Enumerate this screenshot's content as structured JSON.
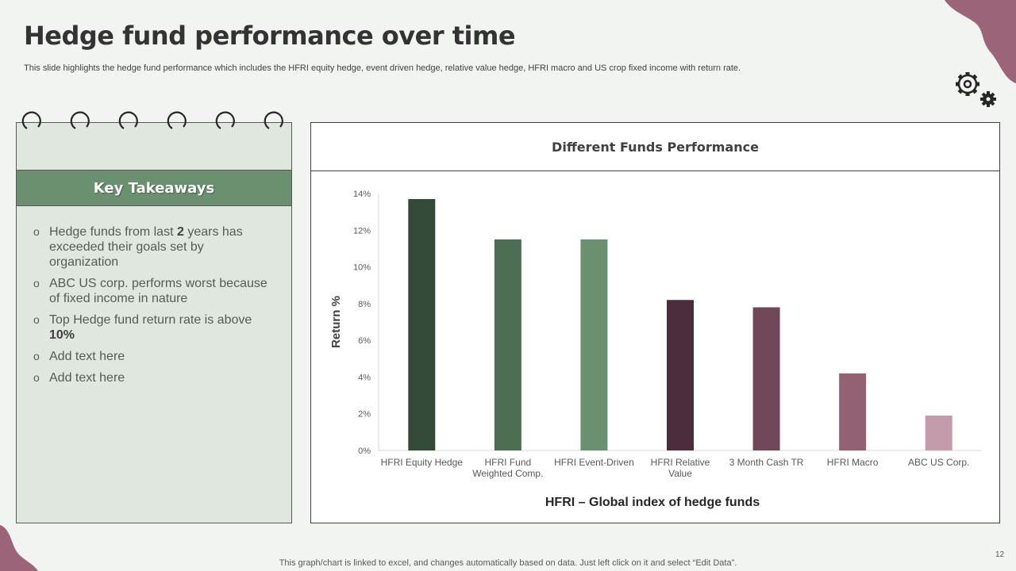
{
  "header": {
    "title": "Hedge fund performance over time",
    "subtitle": "This slide highlights the hedge fund performance which includes the HFRI equity hedge, event driven hedge, relative value hedge, HFRI macro and US crop fixed income with return rate."
  },
  "icons": {
    "settings": "gears-icon"
  },
  "takeaways": {
    "heading": "Key Takeaways",
    "bullet_glyph": "o",
    "items": [
      {
        "before": "Hedge funds from last ",
        "bold": "2",
        "after": " years has exceeded their goals set by organization"
      },
      {
        "before": "ABC US corp. performs worst because of fixed income in nature",
        "bold": "",
        "after": ""
      },
      {
        "before": "Top Hedge fund return rate is above ",
        "bold": "10%",
        "after": ""
      },
      {
        "before": "Add text here",
        "bold": "",
        "after": ""
      },
      {
        "before": "Add text here",
        "bold": "",
        "after": ""
      }
    ]
  },
  "chart_data": {
    "type": "bar",
    "title": "Different Funds Performance",
    "xlabel": "HFRI – Global index of hedge funds",
    "ylabel": "Return %",
    "ylim": [
      0,
      14
    ],
    "yticks": [
      "0%",
      "2%",
      "4%",
      "6%",
      "8%",
      "10%",
      "12%",
      "14%"
    ],
    "categories": [
      "HFRI Equity Hedge",
      "HFRI Fund Weighted Comp.",
      "HFRI Event-Driven",
      "HFRI Relative Value",
      "3 Month Cash TR",
      "HFRI Macro",
      "ABC US Corp."
    ],
    "category_lines": [
      [
        "HFRI Equity Hedge"
      ],
      [
        "HFRI Fund",
        "Weighted Comp."
      ],
      [
        "HFRI Event-Driven"
      ],
      [
        "HFRI Relative",
        "Value"
      ],
      [
        "3 Month Cash TR"
      ],
      [
        "HFRI Macro"
      ],
      [
        "ABC US Corp."
      ]
    ],
    "values": [
      13.7,
      11.5,
      11.5,
      8.2,
      7.8,
      4.2,
      1.9
    ],
    "colors": [
      "#344a38",
      "#4e6e53",
      "#6a9070",
      "#4a2c3c",
      "#6f4759",
      "#946074",
      "#c39bab"
    ],
    "grid": false
  },
  "footer": {
    "note": "This graph/chart is linked to excel,  and changes automatically based on data. Just left click on it and select “Edit Data”.",
    "page": "12"
  },
  "theme": {
    "accent_green": "#6a9070",
    "accent_mauve": "#9b6478"
  }
}
